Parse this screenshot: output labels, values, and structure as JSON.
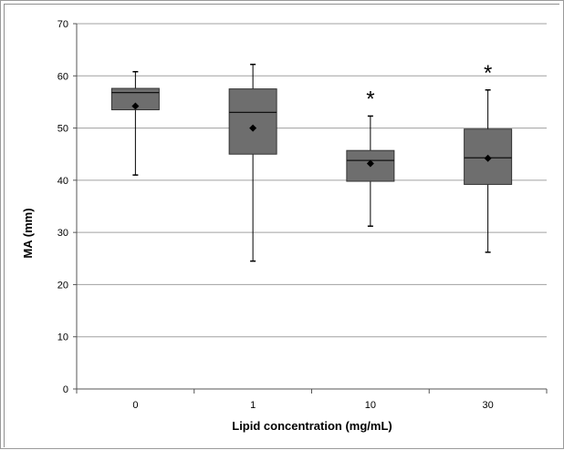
{
  "chart_data": {
    "type": "box",
    "title": "",
    "xlabel": "Lipid concentration (mg/mL)",
    "ylabel": "MA (mm)",
    "ylim": [
      0,
      70
    ],
    "yticks": [
      0,
      10,
      20,
      30,
      40,
      50,
      60,
      70
    ],
    "grid": true,
    "legend": "none",
    "categories": [
      "0",
      "1",
      "10",
      "30"
    ],
    "boxes": [
      {
        "category": "0",
        "min": 41.0,
        "q1": 53.5,
        "median": 56.8,
        "q3": 57.6,
        "max": 60.8,
        "mean": 54.2,
        "annotation": ""
      },
      {
        "category": "1",
        "min": 24.5,
        "q1": 45.0,
        "median": 53.0,
        "q3": 57.5,
        "max": 62.2,
        "mean": 50.0,
        "annotation": ""
      },
      {
        "category": "10",
        "min": 31.2,
        "q1": 39.8,
        "median": 43.8,
        "q3": 45.7,
        "max": 52.3,
        "mean": 43.2,
        "annotation": "*"
      },
      {
        "category": "30",
        "min": 26.2,
        "q1": 39.2,
        "median": 44.3,
        "q3": 49.8,
        "max": 57.3,
        "mean": 44.2,
        "annotation": "*"
      }
    ],
    "colors": {
      "box_fill": "#6e6e6e",
      "box_stroke": "#333333",
      "grid": "#a0a0a0",
      "mean_marker": "#000000"
    }
  }
}
